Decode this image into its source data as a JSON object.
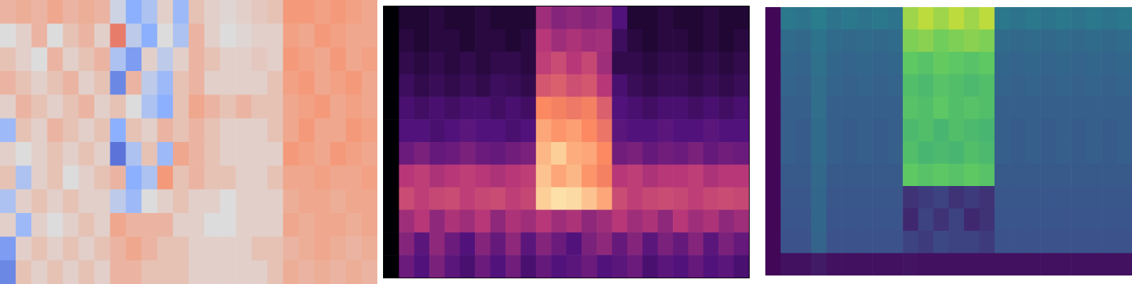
{
  "chart_data": [
    {
      "type": "heatmap",
      "color": "coolwarm",
      "color_range": [
        -1,
        1
      ],
      "tick_labels": false,
      "cells": [
        [
          0.3,
          0.35,
          0.3,
          0.4,
          0.3,
          0.35,
          0.3,
          -0.1,
          -0.5,
          -0.3,
          0.1,
          -0.4,
          0.2,
          0.1,
          0.05,
          0.1,
          0.15,
          0.2,
          0.5,
          0.5,
          0.45,
          0.5,
          0.45,
          0.4
        ],
        [
          0,
          0.1,
          0.3,
          0,
          0.2,
          0.3,
          0.1,
          0.6,
          -0.2,
          -0.5,
          0,
          -0.3,
          0.3,
          0.1,
          0,
          0.05,
          0.1,
          0.1,
          0.45,
          0.4,
          0.5,
          0.45,
          0.4,
          0.4
        ],
        [
          0.2,
          0.1,
          0,
          0.3,
          0.1,
          0.2,
          0.3,
          -0.3,
          -0.6,
          0.1,
          -0.2,
          0.1,
          0.3,
          0.2,
          0.1,
          0.1,
          0.15,
          0.1,
          0.5,
          0.45,
          0.4,
          0.5,
          0.4,
          0.45
        ],
        [
          0.3,
          0.2,
          0.1,
          0.2,
          0.3,
          0.1,
          0.2,
          -0.7,
          0.3,
          -0.2,
          -0.4,
          0.2,
          0.3,
          0.1,
          0.1,
          0.1,
          0.1,
          0.2,
          0.45,
          0.5,
          0.4,
          0.45,
          0.5,
          0.4
        ],
        [
          0.1,
          0.3,
          0.2,
          0.1,
          0.2,
          0.3,
          0.1,
          0.2,
          0,
          -0.3,
          -0.5,
          0.2,
          0.4,
          0.3,
          0.2,
          0.3,
          0.2,
          0.2,
          0.4,
          0.45,
          0.5,
          0.4,
          0.45,
          0.4
        ],
        [
          -0.4,
          0.2,
          0.1,
          0.3,
          0.2,
          0.1,
          0.2,
          -0.5,
          0.2,
          0.1,
          0.3,
          0.2,
          0.3,
          0.2,
          0.1,
          0.1,
          0.1,
          0.2,
          0.4,
          0.5,
          0.4,
          0.4,
          0.5,
          0.45
        ],
        [
          0.1,
          0,
          0.1,
          0.2,
          0.1,
          0.2,
          0.1,
          -0.8,
          -0.3,
          0.2,
          -0.4,
          0.4,
          0.3,
          0.2,
          0.1,
          0.1,
          0.1,
          0.1,
          0.5,
          0.45,
          0.4,
          0.5,
          0.45,
          0.4
        ],
        [
          0.2,
          -0.3,
          0.1,
          0.2,
          0,
          0.1,
          0.2,
          0.3,
          -0.5,
          -0.3,
          0.5,
          0.2,
          0.3,
          0.2,
          0.2,
          0.1,
          0.1,
          0.2,
          0.4,
          0.4,
          0.45,
          0.4,
          0.4,
          0.45
        ],
        [
          -0.3,
          0.1,
          0.2,
          0.1,
          0.2,
          0.1,
          0.1,
          -0.2,
          -0.4,
          0,
          0.1,
          0.2,
          0.1,
          0.1,
          0,
          0.1,
          0.1,
          0.1,
          0.35,
          0.4,
          0.4,
          0.35,
          0.4,
          0.4
        ],
        [
          0.1,
          -0.4,
          0.1,
          0,
          0.1,
          0.2,
          0.1,
          0.4,
          0.3,
          0.3,
          0.3,
          0.1,
          0.1,
          0,
          0,
          0.1,
          0.1,
          0.1,
          0.4,
          0.35,
          0.4,
          0.4,
          0.35,
          0.4
        ],
        [
          -0.6,
          0.1,
          0.2,
          0.1,
          0.2,
          0.1,
          0.2,
          0.3,
          0.4,
          0.3,
          0.2,
          0.2,
          0.1,
          0.1,
          0.1,
          0.1,
          0.2,
          0.2,
          0.3,
          0.35,
          0.4,
          0.35,
          0.3,
          0.35
        ],
        [
          -0.7,
          0.2,
          0.1,
          0.2,
          0.1,
          0.2,
          0.1,
          0.3,
          0.3,
          0.2,
          0.2,
          0.2,
          0.1,
          0.1,
          0.1,
          0.1,
          0.1,
          0.2,
          0.35,
          0.3,
          0.35,
          0.3,
          0.35,
          0.3
        ]
      ]
    },
    {
      "type": "heatmap",
      "color": "magma",
      "color_range": [
        -80,
        0
      ],
      "tick_labels": false,
      "cells": [
        [
          -80,
          -72,
          -72,
          -70,
          -72,
          -72,
          -70,
          -72,
          -72,
          -72,
          -45,
          -50,
          -48,
          -50,
          -48,
          -60,
          -72,
          -72,
          -70,
          -72,
          -72,
          -70,
          -72,
          -72
        ],
        [
          -80,
          -70,
          -72,
          -70,
          -70,
          -72,
          -70,
          -70,
          -72,
          -70,
          -40,
          -45,
          -42,
          -45,
          -44,
          -65,
          -70,
          -72,
          -70,
          -70,
          -72,
          -70,
          -72,
          -70
        ],
        [
          -80,
          -68,
          -70,
          -68,
          -70,
          -68,
          -70,
          -68,
          -68,
          -70,
          -38,
          -35,
          -40,
          -36,
          -45,
          -68,
          -68,
          -70,
          -68,
          -68,
          -70,
          -68,
          -70,
          -68
        ],
        [
          -80,
          -65,
          -68,
          -66,
          -68,
          -66,
          -68,
          -65,
          -66,
          -68,
          -32,
          -30,
          -34,
          -32,
          -40,
          -62,
          -66,
          -68,
          -66,
          -66,
          -68,
          -66,
          -68,
          -66
        ],
        [
          -80,
          -62,
          -64,
          -62,
          -64,
          -62,
          -62,
          -64,
          -62,
          -64,
          -20,
          -22,
          -24,
          -22,
          -30,
          -60,
          -62,
          -64,
          -62,
          -62,
          -64,
          -62,
          -64,
          -62
        ],
        [
          -80,
          -60,
          -60,
          -62,
          -60,
          -58,
          -60,
          -60,
          -62,
          -60,
          -15,
          -18,
          -16,
          -20,
          -25,
          -58,
          -60,
          -60,
          -58,
          -60,
          -60,
          -58,
          -60,
          -60
        ],
        [
          -80,
          -55,
          -52,
          -56,
          -55,
          -52,
          -55,
          -56,
          -54,
          -52,
          -12,
          -8,
          -14,
          -15,
          -20,
          -54,
          -52,
          -56,
          -54,
          -55,
          -52,
          -56,
          -54,
          -55
        ],
        [
          -80,
          -40,
          -38,
          -42,
          -40,
          -38,
          -40,
          -42,
          -40,
          -38,
          -10,
          -15,
          -12,
          -18,
          -22,
          -40,
          -38,
          -42,
          -40,
          -40,
          -38,
          -42,
          -40,
          -40
        ],
        [
          -80,
          -35,
          -38,
          -36,
          -35,
          -38,
          -36,
          -35,
          -38,
          -36,
          -8,
          -5,
          -6,
          -10,
          -15,
          -35,
          -38,
          -36,
          -35,
          -36,
          -38,
          -36,
          -35,
          -36
        ],
        [
          -80,
          -45,
          -40,
          -48,
          -42,
          -45,
          -40,
          -48,
          -42,
          -45,
          -40,
          -45,
          -42,
          -48,
          -45,
          -40,
          -45,
          -42,
          -48,
          -40,
          -45,
          -42,
          -48,
          -45
        ],
        [
          -80,
          -50,
          -58,
          -48,
          -55,
          -60,
          -50,
          -56,
          -48,
          -58,
          -50,
          -55,
          -60,
          -52,
          -48,
          -56,
          -50,
          -58,
          -52,
          -56,
          -50,
          -58,
          -52,
          -56
        ],
        [
          -80,
          -55,
          -60,
          -52,
          -58,
          -62,
          -55,
          -60,
          -54,
          -62,
          -56,
          -60,
          -58,
          -55,
          -60,
          -58,
          -55,
          -62,
          -58,
          -60,
          -56,
          -60,
          -58,
          -62
        ]
      ]
    },
    {
      "type": "heatmap",
      "color": "viridis",
      "color_range": [
        0,
        1
      ],
      "tick_labels": false,
      "cells": [
        [
          0.02,
          0.4,
          0.38,
          0.42,
          0.38,
          0.4,
          0.38,
          0.4,
          0.38,
          0.85,
          0.9,
          0.85,
          0.9,
          0.85,
          0.9,
          0.4,
          0.38,
          0.4,
          0.38,
          0.4,
          0.38,
          0.4,
          0.38,
          0.4
        ],
        [
          0.02,
          0.35,
          0.34,
          0.38,
          0.35,
          0.34,
          0.35,
          0.34,
          0.35,
          0.8,
          0.82,
          0.78,
          0.8,
          0.82,
          0.8,
          0.35,
          0.34,
          0.35,
          0.34,
          0.35,
          0.34,
          0.35,
          0.34,
          0.35
        ],
        [
          0.02,
          0.33,
          0.32,
          0.37,
          0.33,
          0.32,
          0.33,
          0.32,
          0.33,
          0.75,
          0.72,
          0.76,
          0.74,
          0.72,
          0.75,
          0.33,
          0.32,
          0.33,
          0.32,
          0.33,
          0.32,
          0.33,
          0.32,
          0.33
        ],
        [
          0.02,
          0.32,
          0.31,
          0.36,
          0.32,
          0.31,
          0.32,
          0.31,
          0.32,
          0.7,
          0.68,
          0.72,
          0.7,
          0.68,
          0.7,
          0.32,
          0.31,
          0.32,
          0.31,
          0.32,
          0.31,
          0.32,
          0.31,
          0.32
        ],
        [
          0.02,
          0.3,
          0.3,
          0.36,
          0.3,
          0.3,
          0.3,
          0.3,
          0.3,
          0.72,
          0.7,
          0.74,
          0.7,
          0.72,
          0.7,
          0.3,
          0.3,
          0.3,
          0.3,
          0.3,
          0.3,
          0.3,
          0.3,
          0.3
        ],
        [
          0.02,
          0.3,
          0.29,
          0.35,
          0.3,
          0.29,
          0.3,
          0.29,
          0.3,
          0.68,
          0.7,
          0.66,
          0.7,
          0.68,
          0.66,
          0.3,
          0.29,
          0.3,
          0.29,
          0.3,
          0.29,
          0.3,
          0.29,
          0.3
        ],
        [
          0.02,
          0.3,
          0.29,
          0.35,
          0.3,
          0.29,
          0.3,
          0.29,
          0.3,
          0.7,
          0.66,
          0.68,
          0.66,
          0.7,
          0.68,
          0.3,
          0.29,
          0.3,
          0.29,
          0.3,
          0.29,
          0.3,
          0.29,
          0.3
        ],
        [
          0.02,
          0.28,
          0.28,
          0.34,
          0.28,
          0.28,
          0.28,
          0.28,
          0.28,
          0.75,
          0.72,
          0.74,
          0.72,
          0.75,
          0.72,
          0.28,
          0.28,
          0.28,
          0.28,
          0.28,
          0.28,
          0.28,
          0.28,
          0.28
        ],
        [
          0.02,
          0.27,
          0.27,
          0.33,
          0.27,
          0.27,
          0.27,
          0.27,
          0.27,
          0.15,
          0.18,
          0.2,
          0.15,
          0.18,
          0.15,
          0.27,
          0.27,
          0.27,
          0.27,
          0.27,
          0.27,
          0.27,
          0.27,
          0.27
        ],
        [
          0.02,
          0.26,
          0.26,
          0.33,
          0.26,
          0.26,
          0.26,
          0.26,
          0.26,
          0.12,
          0.2,
          0.15,
          0.2,
          0.12,
          0.15,
          0.26,
          0.26,
          0.26,
          0.26,
          0.26,
          0.26,
          0.26,
          0.26,
          0.26
        ],
        [
          0.02,
          0.25,
          0.25,
          0.32,
          0.25,
          0.25,
          0.25,
          0.25,
          0.25,
          0.2,
          0.18,
          0.22,
          0.2,
          0.2,
          0.18,
          0.25,
          0.25,
          0.25,
          0.25,
          0.25,
          0.25,
          0.25,
          0.25,
          0.25
        ],
        [
          0.02,
          0.05,
          0.05,
          0.08,
          0.05,
          0.05,
          0.05,
          0.05,
          0.05,
          0.06,
          0.05,
          0.05,
          0.05,
          0.05,
          0.05,
          0.05,
          0.05,
          0.05,
          0.05,
          0.05,
          0.05,
          0.05,
          0.05,
          0.05
        ]
      ]
    }
  ]
}
